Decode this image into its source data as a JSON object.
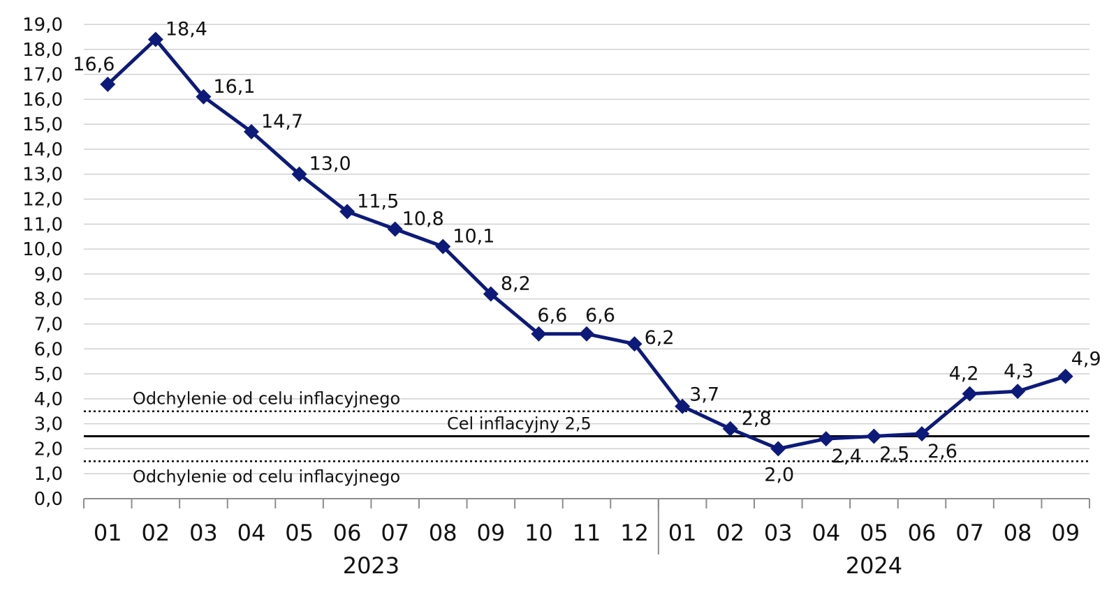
{
  "chart_data": {
    "type": "line",
    "title": "",
    "xlabel": "",
    "ylabel": "",
    "ylim": [
      0,
      19
    ],
    "y_ticks": [
      "0,0",
      "1,0",
      "2,0",
      "3,0",
      "4,0",
      "5,0",
      "6,0",
      "7,0",
      "8,0",
      "9,0",
      "10,0",
      "11,0",
      "12,0",
      "13,0",
      "14,0",
      "15,0",
      "16,0",
      "17,0",
      "18,0",
      "19,0"
    ],
    "grid": true,
    "legend": "none",
    "categories": [
      "01",
      "02",
      "03",
      "04",
      "05",
      "06",
      "07",
      "08",
      "09",
      "10",
      "11",
      "12",
      "01",
      "02",
      "03",
      "04",
      "05",
      "06",
      "07",
      "08",
      "09"
    ],
    "year_groups": [
      {
        "label": "2023",
        "start": 0,
        "count": 12
      },
      {
        "label": "2024",
        "start": 12,
        "count": 9
      }
    ],
    "series": [
      {
        "color": "#0d1a7a",
        "values": [
          16.6,
          18.4,
          16.1,
          14.7,
          13.0,
          11.5,
          10.8,
          10.1,
          8.2,
          6.6,
          6.6,
          6.2,
          3.7,
          2.8,
          2.0,
          2.4,
          2.5,
          2.6,
          4.2,
          4.3,
          4.9
        ],
        "labels": [
          "16,6",
          "18,4",
          "16,1",
          "14,7",
          "13,0",
          "11,5",
          "10,8",
          "10,1",
          "8,2",
          "6,6",
          "6,6",
          "6,2",
          "3,7",
          "2,8",
          "2,0",
          "2,4",
          "2,5",
          "2,6",
          "4,2",
          "4,3",
          "4,9"
        ]
      }
    ],
    "reference_lines": [
      {
        "value": 3.5,
        "style": "dotted",
        "label": "Odchylenie od celu inflacyjnego"
      },
      {
        "value": 2.5,
        "style": "solid",
        "label": "Cel inflacyjny 2,5"
      },
      {
        "value": 1.5,
        "style": "dotted",
        "label": "Odchylenie od celu inflacyjnego"
      }
    ],
    "colors": {
      "line": "#0d1a7a",
      "grid": "#d0d0d0",
      "axis": "#8c8c8c",
      "reference": "#000000"
    }
  }
}
